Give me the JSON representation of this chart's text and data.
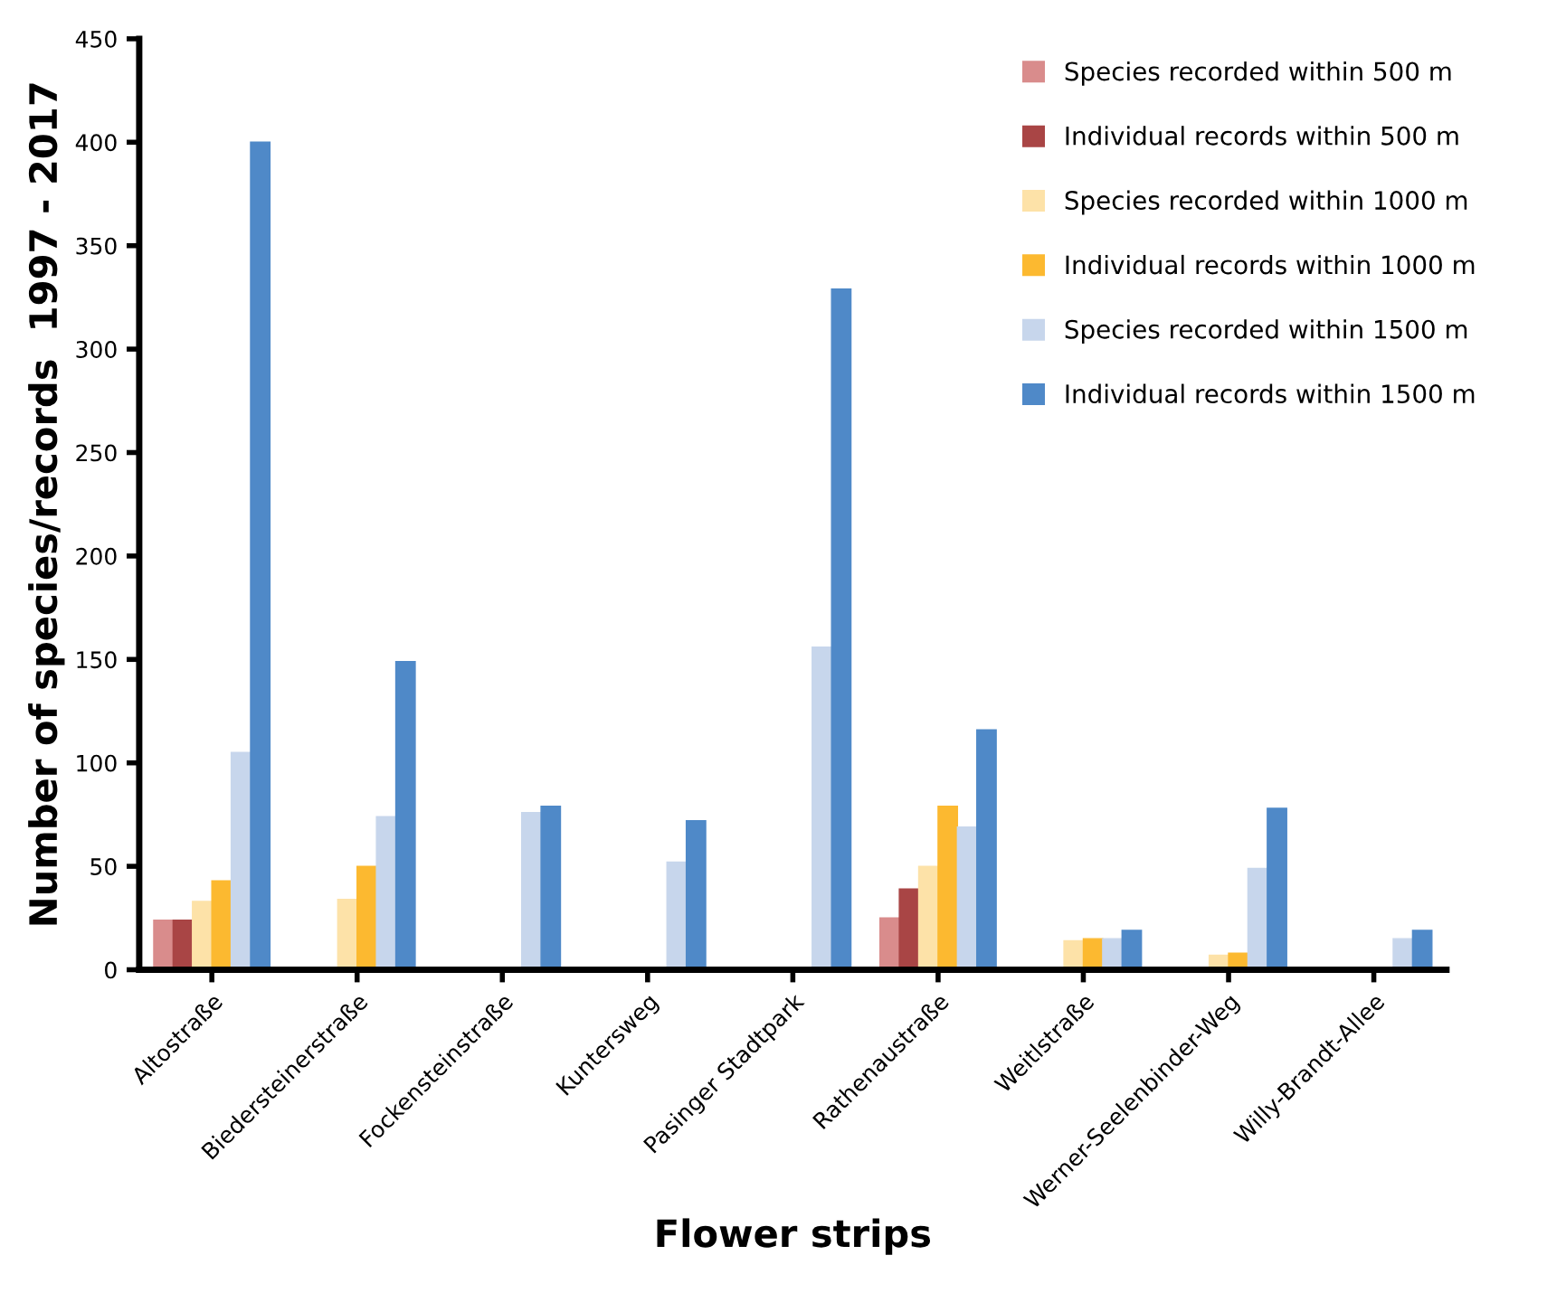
{
  "chart_data": {
    "type": "bar",
    "xlabel": "Flower strips",
    "ylabel": "Number of species/records  1997 - 2017",
    "categories": [
      "Altostraße",
      "Biedersteinerstraße",
      "Fockensteinstraße",
      "Kuntersweg",
      "Pasinger Stadtpark",
      "Rathenaustraße",
      "Weitlstraße",
      "Werner-Seelenbinder-Weg",
      "Willy-Brandt-Allee"
    ],
    "series": [
      {
        "name": "Species recorded within 500 m",
        "color": "#d98c8c",
        "values": [
          24,
          0,
          0,
          0,
          0,
          25,
          0,
          0,
          0
        ]
      },
      {
        "name": "Individual records within 500 m",
        "color": "#a94545",
        "values": [
          24,
          0,
          0,
          0,
          0,
          39,
          0,
          0,
          0
        ]
      },
      {
        "name": "Species recorded within 1000 m",
        "color": "#fde2a8",
        "values": [
          33,
          34,
          0,
          0,
          0,
          50,
          14,
          7,
          0
        ]
      },
      {
        "name": "Individual records within 1000 m",
        "color": "#fcb930",
        "values": [
          43,
          50,
          0,
          0,
          0,
          79,
          15,
          8,
          0
        ]
      },
      {
        "name": "Species recorded within 1500 m",
        "color": "#c7d6ec",
        "values": [
          105,
          74,
          76,
          52,
          156,
          69,
          15,
          49,
          15
        ]
      },
      {
        "name": "Individual records within 1500 m",
        "color": "#4f89c8",
        "values": [
          400,
          149,
          79,
          72,
          329,
          116,
          19,
          78,
          19
        ]
      }
    ],
    "ylim": [
      0,
      450
    ],
    "yticks": [
      0,
      50,
      100,
      150,
      200,
      250,
      300,
      350,
      400,
      450
    ],
    "grid": false,
    "legend": "top right"
  }
}
